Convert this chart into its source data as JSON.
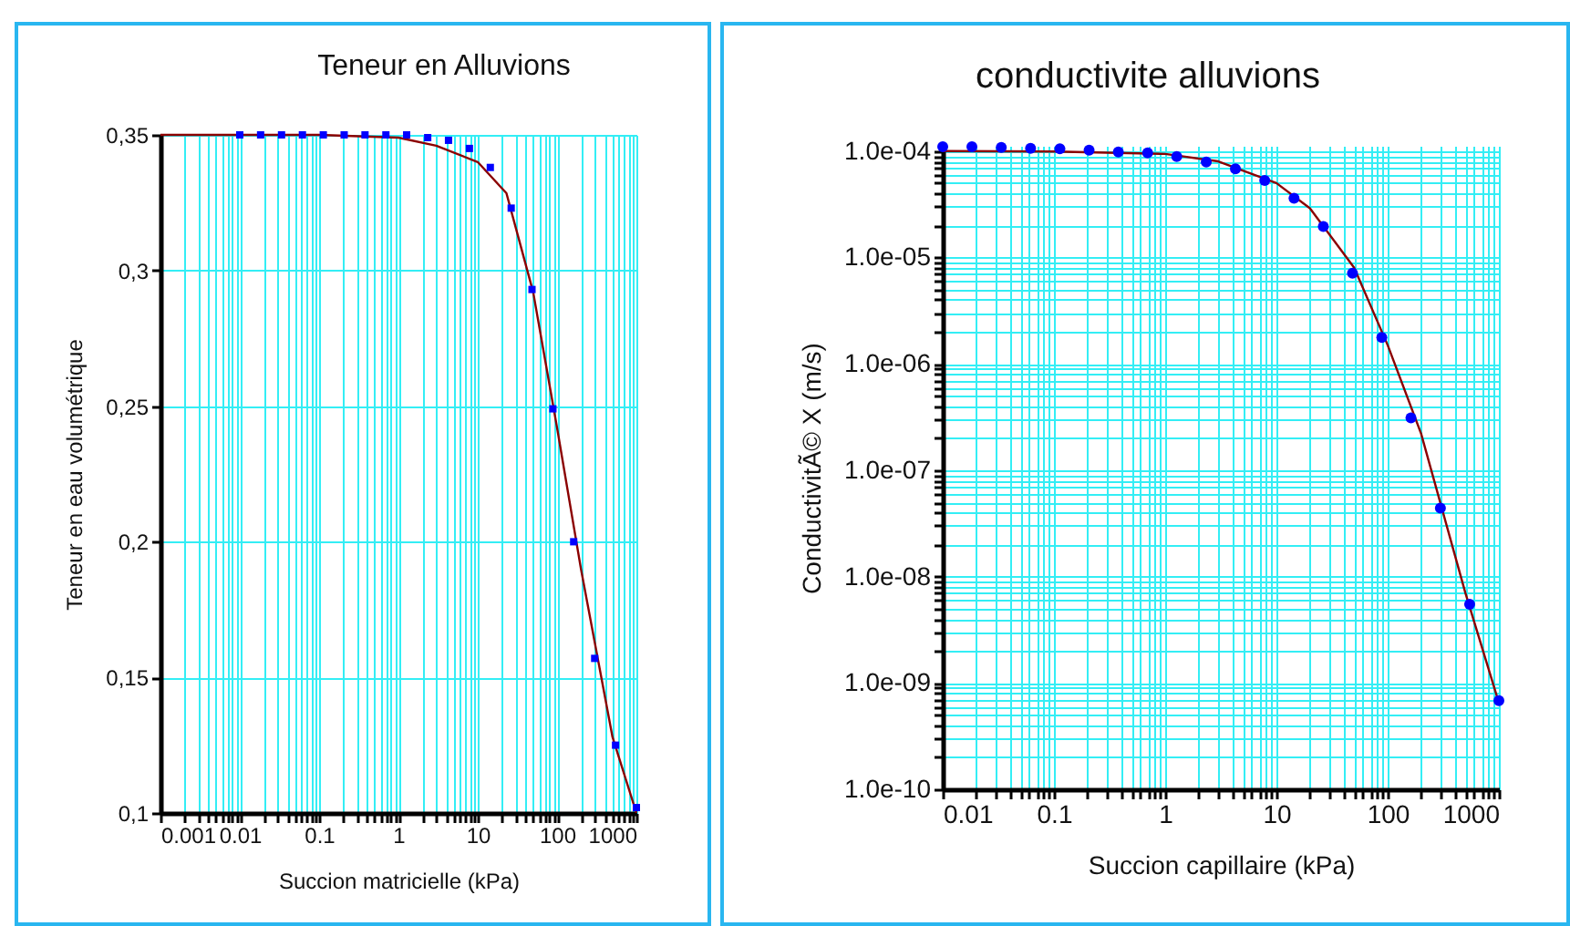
{
  "chart_data": [
    {
      "type": "scatter",
      "title": "Teneur en Alluvions",
      "xlabel": "Succion matricielle (kPa)",
      "ylabel": "Teneur en eau volumétrique",
      "log": "x",
      "grid": true,
      "xlim": [
        0.001,
        1000
      ],
      "ylim": [
        0.1,
        0.35
      ],
      "xticks": [
        0.001,
        {
          "value": 0.002,
          "label": null
        },
        {
          "value": 0.003,
          "label": null
        },
        {
          "value": 0.004,
          "label": null
        },
        {
          "value": 0.005,
          "label": null
        },
        {
          "value": 0.006,
          "label": null
        },
        {
          "value": 0.007,
          "label": null
        },
        {
          "value": 0.008,
          "label": null
        },
        {
          "value": 0.009,
          "label": null
        },
        0.01,
        {
          "value": 0.02,
          "label": null
        },
        {
          "value": 0.03,
          "label": null
        },
        {
          "value": 0.04,
          "label": null
        },
        {
          "value": 0.05,
          "label": null
        },
        {
          "value": 0.06,
          "label": null
        },
        {
          "value": 0.07,
          "label": null
        },
        {
          "value": 0.08,
          "label": null
        },
        {
          "value": 0.09,
          "label": null
        },
        0.1,
        {
          "value": 0.2,
          "label": null
        },
        {
          "value": 0.3,
          "label": null
        },
        {
          "value": 0.4,
          "label": null
        },
        {
          "value": 0.5,
          "label": null
        },
        {
          "value": 0.6,
          "label": null
        },
        {
          "value": 0.7,
          "label": null
        },
        {
          "value": 0.8,
          "label": null
        },
        {
          "value": 0.9,
          "label": null
        },
        1,
        {
          "value": 2,
          "label": null
        },
        {
          "value": 3,
          "label": null
        },
        {
          "value": 4,
          "label": null
        },
        {
          "value": 5,
          "label": null
        },
        {
          "value": 6,
          "label": null
        },
        {
          "value": 7,
          "label": null
        },
        {
          "value": 8,
          "label": null
        },
        {
          "value": 9,
          "label": null
        },
        10,
        {
          "value": 20,
          "label": null
        },
        {
          "value": 30,
          "label": null
        },
        {
          "value": 40,
          "label": null
        },
        {
          "value": 50,
          "label": null
        },
        {
          "value": 60,
          "label": null
        },
        {
          "value": 70,
          "label": null
        },
        {
          "value": 80,
          "label": null
        },
        {
          "value": 90,
          "label": null
        },
        100,
        {
          "value": 200,
          "label": null
        },
        {
          "value": 300,
          "label": null
        },
        {
          "value": 400,
          "label": null
        },
        {
          "value": 500,
          "label": null
        },
        {
          "value": 600,
          "label": null
        },
        {
          "value": 700,
          "label": null
        },
        {
          "value": 800,
          "label": null
        },
        {
          "value": 900,
          "label": null
        },
        1000
      ],
      "yticks": [
        {
          "value": 0.1,
          "label": "0,1"
        },
        {
          "value": 0.15,
          "label": "0,15"
        },
        {
          "value": 0.2,
          "label": "0,2"
        },
        {
          "value": 0.25,
          "label": "0,25"
        },
        {
          "value": 0.3,
          "label": "0,3"
        },
        {
          "value": 0.35,
          "label": "0,35"
        }
      ],
      "series": [
        {
          "type": "line",
          "color": "#8b0000",
          "x": [
            0.001,
            0.1,
            1,
            3,
            10,
            23,
            50,
            100,
            200,
            500,
            1000
          ],
          "values": [
            0.35,
            0.35,
            0.349,
            0.346,
            0.34,
            0.3285,
            0.292,
            0.242,
            0.19,
            0.128,
            0.1
          ]
        },
        {
          "type": "scatter",
          "color": "#0000ff",
          "marker": "square",
          "x": [
            0.01,
            0.0183,
            0.0336,
            0.0616,
            0.113,
            0.207,
            0.379,
            0.695,
            1.27,
            2.34,
            4.28,
            7.85,
            14.4,
            26.4,
            48.3,
            88.6,
            162,
            298,
            546,
            1000
          ],
          "values": [
            0.35,
            0.35,
            0.35,
            0.35,
            0.35,
            0.35,
            0.35,
            0.35,
            0.35,
            0.349,
            0.348,
            0.345,
            0.338,
            0.323,
            0.293,
            0.249,
            0.2,
            0.157,
            0.125,
            0.102
          ]
        }
      ]
    },
    {
      "type": "scatter",
      "title": "conductivite alluvions",
      "xlabel": "Succion capillaire (kPa)",
      "ylabel": "ConductivitÃ© X (m/s)",
      "log": "xy",
      "grid": true,
      "xlim": [
        0.01,
        1000
      ],
      "ylim": [
        1e-10,
        0.000112
      ],
      "xticks": [
        0.01,
        {
          "value": 0.02,
          "label": null
        },
        {
          "value": 0.03,
          "label": null
        },
        {
          "value": 0.04,
          "label": null
        },
        {
          "value": 0.05,
          "label": null
        },
        {
          "value": 0.06,
          "label": null
        },
        {
          "value": 0.07,
          "label": null
        },
        {
          "value": 0.08,
          "label": null
        },
        {
          "value": 0.09,
          "label": null
        },
        0.1,
        {
          "value": 0.2,
          "label": null
        },
        {
          "value": 0.3,
          "label": null
        },
        {
          "value": 0.4,
          "label": null
        },
        {
          "value": 0.5,
          "label": null
        },
        {
          "value": 0.6,
          "label": null
        },
        {
          "value": 0.7,
          "label": null
        },
        {
          "value": 0.8,
          "label": null
        },
        {
          "value": 0.9,
          "label": null
        },
        1,
        {
          "value": 2,
          "label": null
        },
        {
          "value": 3,
          "label": null
        },
        {
          "value": 4,
          "label": null
        },
        {
          "value": 5,
          "label": null
        },
        {
          "value": 6,
          "label": null
        },
        {
          "value": 7,
          "label": null
        },
        {
          "value": 8,
          "label": null
        },
        {
          "value": 9,
          "label": null
        },
        10,
        {
          "value": 20,
          "label": null
        },
        {
          "value": 30,
          "label": null
        },
        {
          "value": 40,
          "label": null
        },
        {
          "value": 50,
          "label": null
        },
        {
          "value": 60,
          "label": null
        },
        {
          "value": 70,
          "label": null
        },
        {
          "value": 80,
          "label": null
        },
        {
          "value": 90,
          "label": null
        },
        100,
        {
          "value": 200,
          "label": null
        },
        {
          "value": 300,
          "label": null
        },
        {
          "value": 400,
          "label": null
        },
        {
          "value": 500,
          "label": null
        },
        {
          "value": 600,
          "label": null
        },
        {
          "value": 700,
          "label": null
        },
        {
          "value": 800,
          "label": null
        },
        {
          "value": 900,
          "label": null
        },
        1000
      ],
      "yticks": [
        {
          "value": 1e-10,
          "label": "1.0e-10"
        },
        {
          "value": 2e-10,
          "label": null
        },
        {
          "value": 3e-10,
          "label": null
        },
        {
          "value": 4e-10,
          "label": null
        },
        {
          "value": 5e-10,
          "label": null
        },
        {
          "value": 6e-10,
          "label": null
        },
        {
          "value": 7e-10,
          "label": null
        },
        {
          "value": 8e-10,
          "label": null
        },
        {
          "value": 9e-10,
          "label": null
        },
        {
          "value": 1e-09,
          "label": "1.0e-09"
        },
        {
          "value": 2e-09,
          "label": null
        },
        {
          "value": 3e-09,
          "label": null
        },
        {
          "value": 4e-09,
          "label": null
        },
        {
          "value": 5e-09,
          "label": null
        },
        {
          "value": 6e-09,
          "label": null
        },
        {
          "value": 7e-09,
          "label": null
        },
        {
          "value": 8e-09,
          "label": null
        },
        {
          "value": 9e-09,
          "label": null
        },
        {
          "value": 1e-08,
          "label": "1.0e-08"
        },
        {
          "value": 2e-08,
          "label": null
        },
        {
          "value": 3e-08,
          "label": null
        },
        {
          "value": 4e-08,
          "label": null
        },
        {
          "value": 5e-08,
          "label": null
        },
        {
          "value": 6e-08,
          "label": null
        },
        {
          "value": 7e-08,
          "label": null
        },
        {
          "value": 8e-08,
          "label": null
        },
        {
          "value": 9e-08,
          "label": null
        },
        {
          "value": 1e-07,
          "label": "1.0e-07"
        },
        {
          "value": 2e-07,
          "label": null
        },
        {
          "value": 3e-07,
          "label": null
        },
        {
          "value": 4e-07,
          "label": null
        },
        {
          "value": 5e-07,
          "label": null
        },
        {
          "value": 6e-07,
          "label": null
        },
        {
          "value": 7e-07,
          "label": null
        },
        {
          "value": 8e-07,
          "label": null
        },
        {
          "value": 9e-07,
          "label": null
        },
        {
          "value": 1e-06,
          "label": "1.0e-06"
        },
        {
          "value": 2e-06,
          "label": null
        },
        {
          "value": 3e-06,
          "label": null
        },
        {
          "value": 4e-06,
          "label": null
        },
        {
          "value": 5e-06,
          "label": null
        },
        {
          "value": 6e-06,
          "label": null
        },
        {
          "value": 7e-06,
          "label": null
        },
        {
          "value": 8e-06,
          "label": null
        },
        {
          "value": 9e-06,
          "label": null
        },
        {
          "value": 1e-05,
          "label": "1.0e-05"
        },
        {
          "value": 2e-05,
          "label": null
        },
        {
          "value": 3e-05,
          "label": null
        },
        {
          "value": 4e-05,
          "label": null
        },
        {
          "value": 5e-05,
          "label": null
        },
        {
          "value": 6e-05,
          "label": null
        },
        {
          "value": 7e-05,
          "label": null
        },
        {
          "value": 8e-05,
          "label": null
        },
        {
          "value": 9e-05,
          "label": null
        },
        {
          "value": 0.0001,
          "label": "1.0e-04"
        }
      ],
      "series": [
        {
          "type": "line",
          "color": "#8b0000",
          "x": [
            0.01,
            0.1,
            1,
            3,
            10,
            20,
            50,
            100,
            200,
            500,
            1000
          ],
          "values": [
            0.0001,
            9.9e-05,
            9.4e-05,
            8e-05,
            5e-05,
            2.9e-05,
            8e-06,
            1.5e-06,
            2.2e-07,
            7e-09,
            6.5e-10
          ]
        },
        {
          "type": "scatter",
          "color": "#0000ff",
          "marker": "circle",
          "x": [
            0.01,
            0.0183,
            0.0336,
            0.0616,
            0.113,
            0.207,
            0.379,
            0.695,
            1.27,
            2.34,
            4.28,
            7.85,
            14.4,
            26.4,
            48.3,
            88.6,
            162,
            298,
            546,
            1000
          ],
          "values": [
            0.00011,
            0.00011,
            0.000108,
            0.000106,
            0.000105,
            0.000102,
            9.8e-05,
            9.6e-05,
            8.9e-05,
            7.9e-05,
            6.8e-05,
            5.3e-05,
            3.6e-05,
            1.95e-05,
            7.1e-06,
            1.77e-06,
            3.1e-07,
            4.4e-08,
            5.5e-09,
            6.8e-10
          ]
        }
      ]
    }
  ]
}
